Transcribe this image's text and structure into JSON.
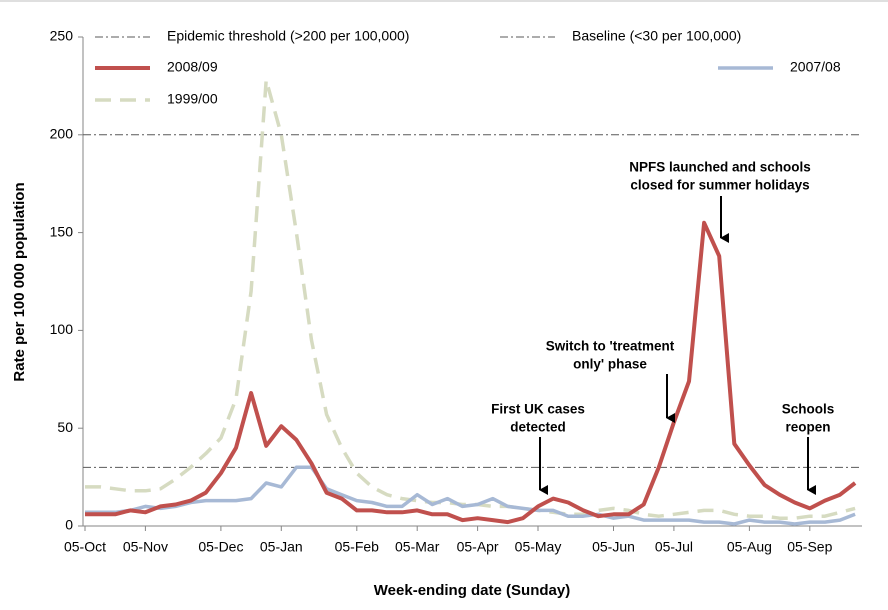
{
  "chart_data": {
    "type": "line",
    "y_axis_label": "Rate per 100 000 population",
    "x_axis_label": "Week-ending date (Sunday)",
    "categories": [
      "05-Oct",
      null,
      null,
      null,
      "05-Nov",
      null,
      null,
      null,
      null,
      "05-Dec",
      null,
      null,
      null,
      "05-Jan",
      null,
      null,
      null,
      null,
      "05-Feb",
      null,
      null,
      null,
      "05-Mar",
      null,
      null,
      null,
      "05-Apr",
      null,
      null,
      null,
      "05-May",
      null,
      null,
      null,
      null,
      "05-Jun",
      null,
      null,
      null,
      "05-Jul",
      null,
      null,
      null,
      null,
      "05-Aug",
      null,
      null,
      null,
      "05-Sep",
      null,
      null,
      null
    ],
    "ylim": [
      0,
      250
    ],
    "yticks": [
      0,
      50,
      100,
      150,
      200,
      250
    ],
    "reference_lines": [
      {
        "name": "Epidemic threshold (>200 per 100,000)",
        "value": 200,
        "color": "#595959"
      },
      {
        "name": "Baseline (<30 per 100,000)",
        "value": 30,
        "color": "#595959"
      }
    ],
    "series": [
      {
        "name": "2008/09",
        "color": "#c0504d",
        "values": [
          6,
          6,
          6,
          8,
          7,
          10,
          11,
          13,
          17,
          27,
          40,
          68,
          41,
          51,
          44,
          32,
          17,
          14,
          8,
          8,
          7,
          7,
          8,
          6,
          6,
          3,
          4,
          3,
          2,
          4,
          10,
          14,
          12,
          8,
          5,
          6,
          6,
          11,
          30,
          53,
          74,
          155,
          138,
          42,
          31,
          21,
          16,
          12,
          9,
          13,
          16,
          22
        ]
      },
      {
        "name": "2007/08",
        "color": "#a7b9d5",
        "values": [
          7,
          7,
          7,
          8,
          10,
          9,
          10,
          12,
          13,
          13,
          13,
          14,
          22,
          20,
          30,
          30,
          19,
          16,
          13,
          12,
          10,
          10,
          16,
          11,
          14,
          10,
          11,
          14,
          10,
          9,
          8,
          8,
          5,
          5,
          6,
          4,
          5,
          3,
          3,
          3,
          3,
          2,
          2,
          1,
          3,
          2,
          2,
          1,
          2,
          2,
          3,
          6
        ]
      },
      {
        "name": "1999/00",
        "color": "#d6dbc1",
        "values": [
          20,
          20,
          19,
          18,
          18,
          19,
          24,
          30,
          37,
          45,
          65,
          120,
          228,
          200,
          150,
          95,
          57,
          40,
          27,
          20,
          16,
          14,
          13,
          12,
          12,
          11,
          11,
          10,
          10,
          9,
          8,
          7,
          6,
          6,
          8,
          9,
          8,
          6,
          5,
          6,
          7,
          8,
          8,
          6,
          5,
          5,
          4,
          4,
          5,
          5,
          7,
          9
        ]
      }
    ],
    "annotations": [
      {
        "lines": [
          "NPFS launched and schools",
          "closed for summer holidays"
        ]
      },
      {
        "lines": [
          "Switch to 'treatment",
          "only' phase"
        ]
      },
      {
        "lines": [
          "First UK cases",
          "detected"
        ]
      },
      {
        "lines": [
          "Schools",
          "reopen"
        ]
      }
    ]
  }
}
